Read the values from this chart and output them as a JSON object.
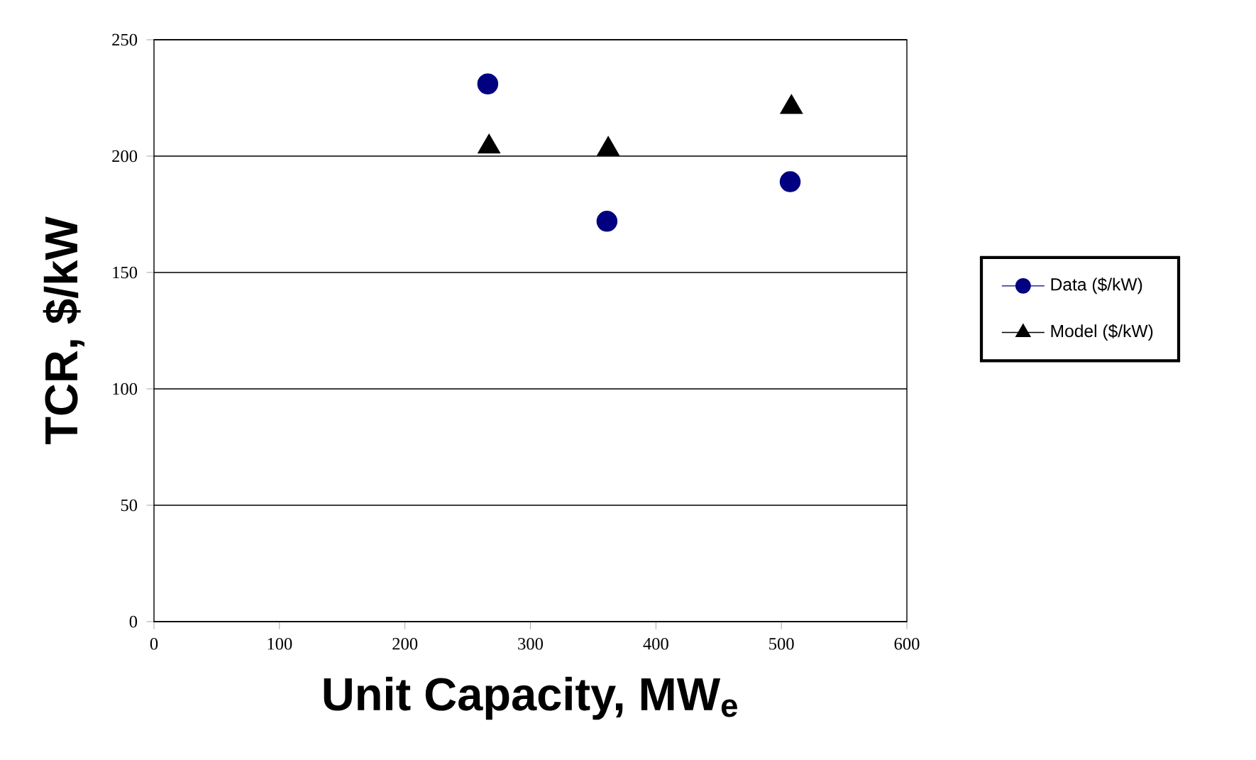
{
  "chart_data": {
    "type": "scatter",
    "xlabel": "Unit Capacity, MW$_{e}$",
    "ylabel": "TCR, $/kW",
    "xlim": [
      0,
      600
    ],
    "xticks": [
      0,
      100,
      200,
      300,
      400,
      500,
      600
    ],
    "ylim": [
      0,
      250
    ],
    "yticks": [
      0,
      50,
      100,
      150,
      200,
      250
    ],
    "grid": "y",
    "legend": "right",
    "series": [
      {
        "name": "Data ($/kW)",
        "color": "#000080",
        "marker": "circle",
        "x": [
          266,
          361,
          507
        ],
        "values": [
          231,
          172,
          189
        ]
      },
      {
        "name": "Model ($/kW)",
        "color": "#000000",
        "marker": "triangle",
        "x": [
          267,
          362,
          508
        ],
        "values": [
          204,
          203,
          221
        ]
      }
    ]
  }
}
